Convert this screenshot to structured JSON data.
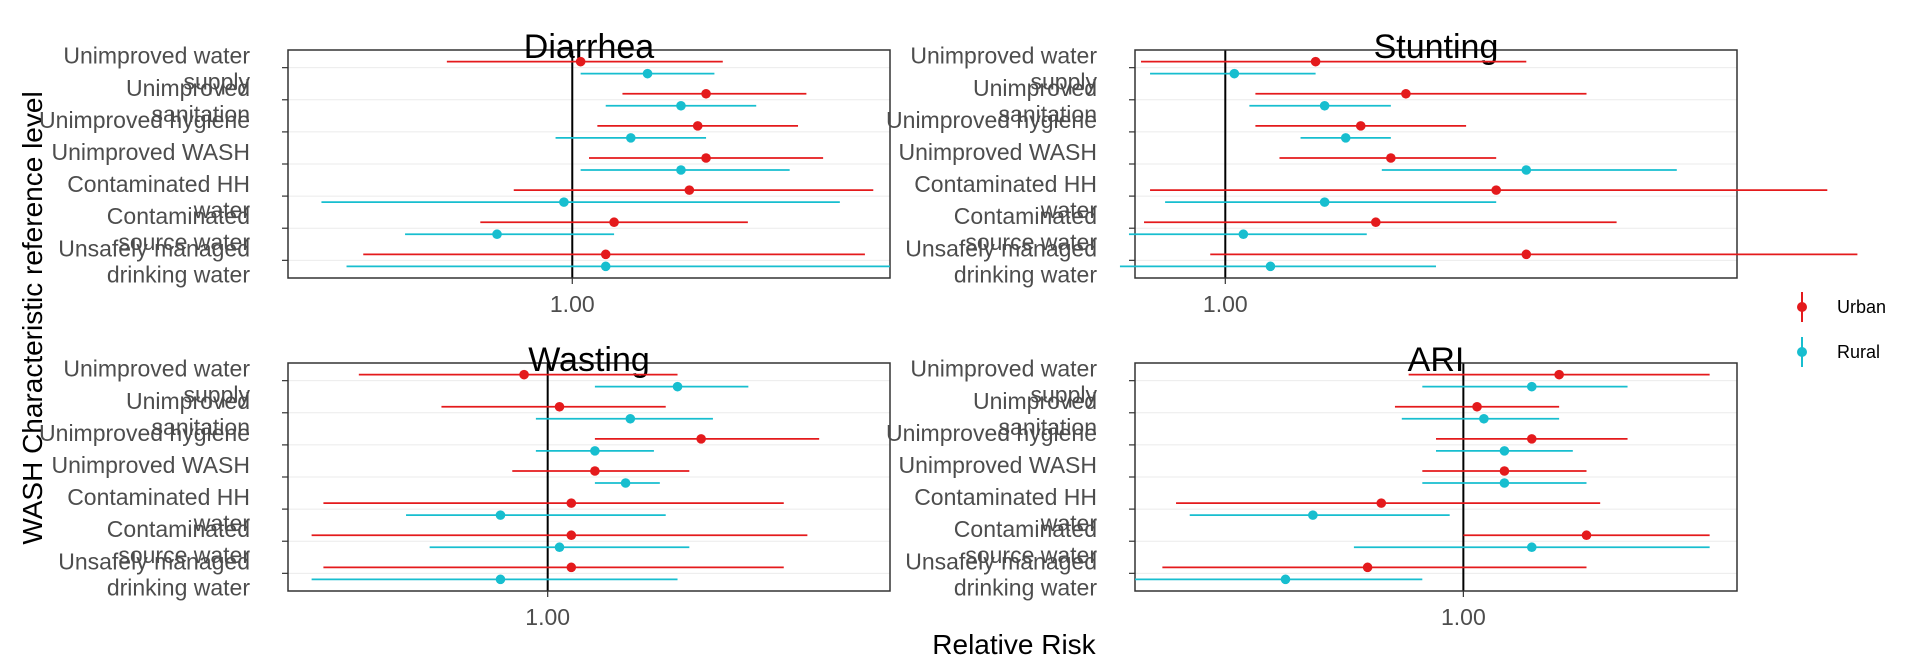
{
  "chart_data": {
    "type": "forest",
    "xlabel": "Relative Risk",
    "ylabel": "WASH Characteristic reference level",
    "legend": {
      "placement": "right",
      "entries": [
        {
          "name": "Urban",
          "color": "#e41a1c"
        },
        {
          "name": "Rural",
          "color": "#17becf"
        }
      ]
    },
    "categories": [
      "Unimproved water supply",
      "Unimproved sanitation",
      "Unimproved hygiene",
      "Unimproved WASH",
      "Contaminated HH water",
      "Contaminated source water",
      "Unsafely managed drinking water"
    ],
    "panels": [
      {
        "title": "Diarrhea",
        "x_ticks": [
          {
            "value": 1.0,
            "label": "1.00"
          }
        ],
        "xlim": [
          0.66,
          1.38
        ],
        "series": [
          {
            "name": "Urban",
            "points": [
              {
                "estimate": 1.01,
                "lower": 0.85,
                "upper": 1.18
              },
              {
                "estimate": 1.16,
                "lower": 1.06,
                "upper": 1.28
              },
              {
                "estimate": 1.15,
                "lower": 1.03,
                "upper": 1.27
              },
              {
                "estimate": 1.16,
                "lower": 1.02,
                "upper": 1.3
              },
              {
                "estimate": 1.14,
                "lower": 0.93,
                "upper": 1.36
              },
              {
                "estimate": 1.05,
                "lower": 0.89,
                "upper": 1.21
              },
              {
                "estimate": 1.04,
                "lower": 0.75,
                "upper": 1.35
              }
            ]
          },
          {
            "name": "Rural",
            "points": [
              {
                "estimate": 1.09,
                "lower": 1.01,
                "upper": 1.17
              },
              {
                "estimate": 1.13,
                "lower": 1.04,
                "upper": 1.22
              },
              {
                "estimate": 1.07,
                "lower": 0.98,
                "upper": 1.16
              },
              {
                "estimate": 1.13,
                "lower": 1.01,
                "upper": 1.26
              },
              {
                "estimate": 0.99,
                "lower": 0.7,
                "upper": 1.32
              },
              {
                "estimate": 0.91,
                "lower": 0.8,
                "upper": 1.05
              },
              {
                "estimate": 1.04,
                "lower": 0.73,
                "upper": 1.38
              }
            ]
          }
        ]
      },
      {
        "title": "Stunting",
        "x_ticks": [
          {
            "value": 1.0,
            "label": "1.00"
          }
        ],
        "xlim": [
          0.97,
          1.17
        ],
        "series": [
          {
            "name": "Urban",
            "points": [
              {
                "estimate": 1.03,
                "lower": 0.972,
                "upper": 1.1
              },
              {
                "estimate": 1.06,
                "lower": 1.01,
                "upper": 1.12
              },
              {
                "estimate": 1.045,
                "lower": 1.01,
                "upper": 1.08
              },
              {
                "estimate": 1.055,
                "lower": 1.018,
                "upper": 1.09
              },
              {
                "estimate": 1.09,
                "lower": 0.975,
                "upper": 1.2
              },
              {
                "estimate": 1.05,
                "lower": 0.973,
                "upper": 1.13
              },
              {
                "estimate": 1.1,
                "lower": 0.995,
                "upper": 1.21
              }
            ]
          },
          {
            "name": "Rural",
            "points": [
              {
                "estimate": 1.003,
                "lower": 0.975,
                "upper": 1.03
              },
              {
                "estimate": 1.033,
                "lower": 1.008,
                "upper": 1.055
              },
              {
                "estimate": 1.04,
                "lower": 1.025,
                "upper": 1.055
              },
              {
                "estimate": 1.1,
                "lower": 1.052,
                "upper": 1.15
              },
              {
                "estimate": 1.033,
                "lower": 0.98,
                "upper": 1.09
              },
              {
                "estimate": 1.006,
                "lower": 0.968,
                "upper": 1.047
              },
              {
                "estimate": 1.015,
                "lower": 0.965,
                "upper": 1.07
              }
            ]
          }
        ]
      },
      {
        "title": "Wasting",
        "x_ticks": [
          {
            "value": 1.0,
            "label": "1.00"
          }
        ],
        "xlim": [
          0.78,
          1.29
        ],
        "series": [
          {
            "name": "Urban",
            "points": [
              {
                "estimate": 0.98,
                "lower": 0.84,
                "upper": 1.11
              },
              {
                "estimate": 1.01,
                "lower": 0.91,
                "upper": 1.1
              },
              {
                "estimate": 1.13,
                "lower": 1.04,
                "upper": 1.23
              },
              {
                "estimate": 1.04,
                "lower": 0.97,
                "upper": 1.12
              },
              {
                "estimate": 1.02,
                "lower": 0.81,
                "upper": 1.2
              },
              {
                "estimate": 1.02,
                "lower": 0.8,
                "upper": 1.22
              },
              {
                "estimate": 1.02,
                "lower": 0.81,
                "upper": 1.2
              }
            ]
          },
          {
            "name": "Rural",
            "points": [
              {
                "estimate": 1.11,
                "lower": 1.04,
                "upper": 1.17
              },
              {
                "estimate": 1.07,
                "lower": 0.99,
                "upper": 1.14
              },
              {
                "estimate": 1.04,
                "lower": 0.99,
                "upper": 1.09
              },
              {
                "estimate": 1.066,
                "lower": 1.04,
                "upper": 1.095
              },
              {
                "estimate": 0.96,
                "lower": 0.88,
                "upper": 1.1
              },
              {
                "estimate": 1.01,
                "lower": 0.9,
                "upper": 1.12
              },
              {
                "estimate": 0.96,
                "lower": 0.8,
                "upper": 1.11
              }
            ]
          }
        ]
      },
      {
        "title": "ARI",
        "x_ticks": [
          {
            "value": 1.0,
            "label": "1.00"
          }
        ],
        "xlim": [
          0.76,
          1.2
        ],
        "series": [
          {
            "name": "Urban",
            "points": [
              {
                "estimate": 1.07,
                "lower": 0.96,
                "upper": 1.18
              },
              {
                "estimate": 1.01,
                "lower": 0.95,
                "upper": 1.07
              },
              {
                "estimate": 1.05,
                "lower": 0.98,
                "upper": 1.12
              },
              {
                "estimate": 1.03,
                "lower": 0.97,
                "upper": 1.09
              },
              {
                "estimate": 0.94,
                "lower": 0.79,
                "upper": 1.1
              },
              {
                "estimate": 1.09,
                "lower": 1.0,
                "upper": 1.18
              },
              {
                "estimate": 0.93,
                "lower": 0.78,
                "upper": 1.09
              }
            ]
          },
          {
            "name": "Rural",
            "points": [
              {
                "estimate": 1.05,
                "lower": 0.97,
                "upper": 1.12
              },
              {
                "estimate": 1.015,
                "lower": 0.955,
                "upper": 1.07
              },
              {
                "estimate": 1.03,
                "lower": 0.98,
                "upper": 1.08
              },
              {
                "estimate": 1.03,
                "lower": 0.97,
                "upper": 1.09
              },
              {
                "estimate": 0.89,
                "lower": 0.8,
                "upper": 0.99
              },
              {
                "estimate": 1.05,
                "lower": 0.92,
                "upper": 1.18
              },
              {
                "estimate": 0.87,
                "lower": 0.76,
                "upper": 0.97
              }
            ]
          }
        ]
      }
    ]
  }
}
